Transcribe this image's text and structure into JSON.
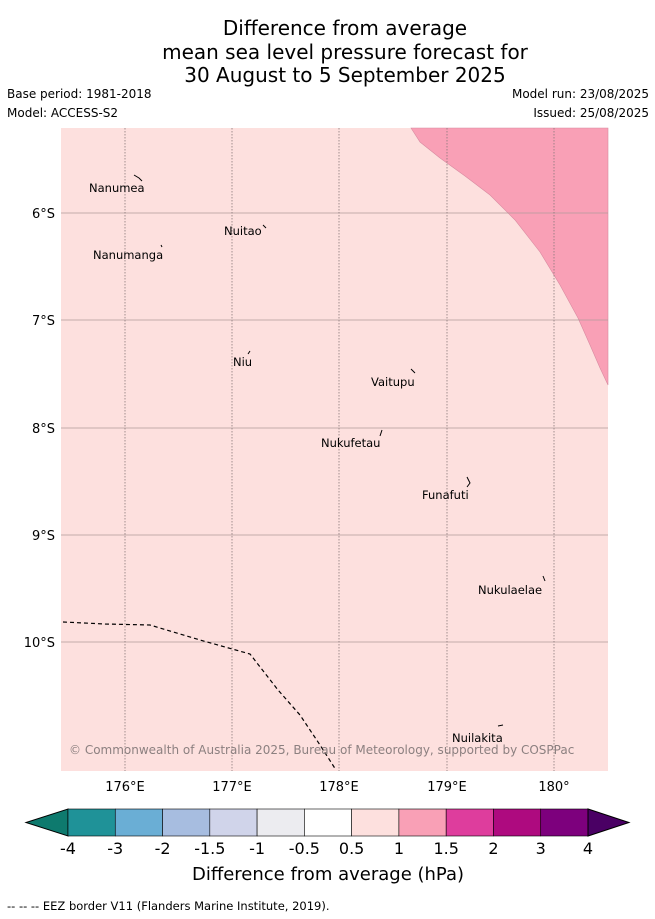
{
  "title": {
    "line1": "Difference from average",
    "line2": "mean sea level pressure forecast for",
    "line3": "30 August to 5 September 2025"
  },
  "meta": {
    "base_period": "Base period: 1981-2018",
    "model": "Model: ACCESS-S2",
    "model_run": "Model run: 23/08/2025",
    "issued": "Issued: 25/08/2025"
  },
  "map": {
    "background_color": "#fde0de",
    "anomaly_region_color": "#f9a0b6",
    "anomaly_region_class": "1 to 1.5 hPa",
    "latitude_labels": [
      "6°S",
      "7°S",
      "8°S",
      "9°S",
      "10°S"
    ],
    "longitude_labels": [
      "176°E",
      "177°E",
      "178°E",
      "179°E",
      "180°"
    ],
    "islands": [
      {
        "name": "Nanumea"
      },
      {
        "name": "Nuitao"
      },
      {
        "name": "Nanumanga"
      },
      {
        "name": "Niu"
      },
      {
        "name": "Vaitupu"
      },
      {
        "name": "Nukufetau"
      },
      {
        "name": "Funafuti"
      },
      {
        "name": "Nukulaelae"
      },
      {
        "name": "Nuilakita"
      }
    ],
    "copyright": "© Commonwealth of Australia 2025, Bureau of Meteorology, supported by COSPPac"
  },
  "colorbar": {
    "ticks": [
      "-4",
      "-3",
      "-2",
      "-1.5",
      "-1",
      "-0.5",
      "0.5",
      "1",
      "1.5",
      "2",
      "3",
      "4"
    ],
    "colors": [
      "#0e7a6e",
      "#1f9298",
      "#6aaed5",
      "#a7bde0",
      "#d0d4ea",
      "#ececf0",
      "#ffffff",
      "#fde0de",
      "#f9a0b6",
      "#de3d9d",
      "#ae0a7f",
      "#7d007d",
      "#4a0064"
    ],
    "label": "Difference from average (hPa)"
  },
  "footer": {
    "legend_symbol": "-- -- --",
    "text": "EEZ border V11 (Flanders Marine Institute, 2019)."
  }
}
